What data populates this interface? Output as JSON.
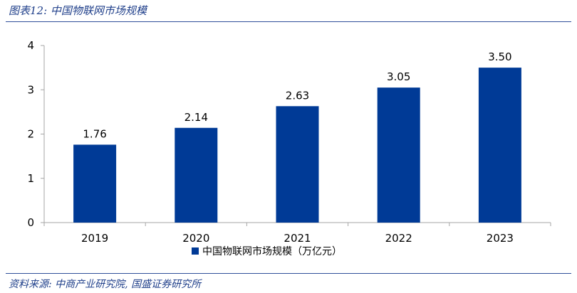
{
  "header": {
    "title": "图表12:  中国物联网市场规模"
  },
  "footer": {
    "source": "资料来源: 中商产业研究院, 国盛证券研究所"
  },
  "colors": {
    "bar": "#003a96",
    "accent": "#1f3f8a",
    "axis": "#a6a6a6"
  },
  "chart_data": {
    "type": "bar",
    "categories": [
      "2019",
      "2020",
      "2021",
      "2022",
      "2023"
    ],
    "series": [
      {
        "name": "中国物联网市场规模（万亿元）",
        "values": [
          1.76,
          2.14,
          2.63,
          3.05,
          3.5
        ]
      }
    ],
    "data_labels": [
      "1.76",
      "2.14",
      "2.63",
      "3.05",
      "3.50"
    ],
    "y_ticks": [
      0,
      1,
      2,
      3,
      4
    ],
    "ylim": [
      0,
      4
    ],
    "title": "",
    "xlabel": "",
    "ylabel": "",
    "grid": false,
    "legend_position": "bottom"
  }
}
